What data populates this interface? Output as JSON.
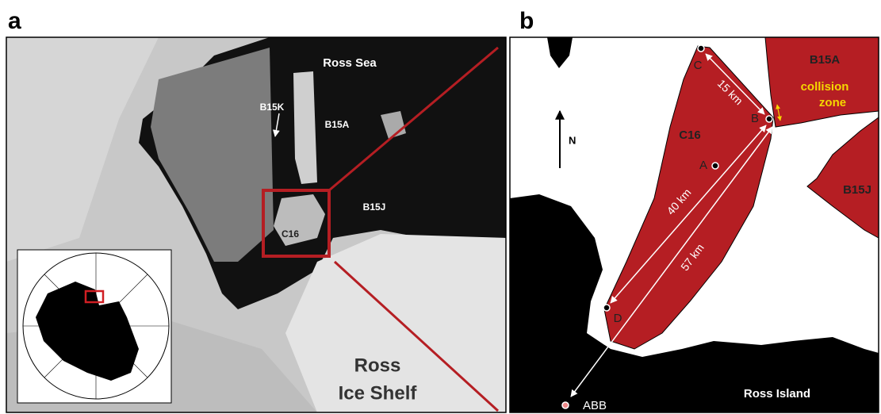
{
  "panel_a": {
    "label": "a",
    "sea_label": "Ross Sea",
    "iceberg_labels": [
      "B15K",
      "B15A",
      "B15J",
      "C16"
    ],
    "shelf_label": [
      "Ross",
      "Ice Shelf"
    ]
  },
  "panel_b": {
    "label": "b",
    "iceberg_labels": [
      "B15A",
      "C16",
      "B15J"
    ],
    "collision_label": [
      "collision",
      "zone"
    ],
    "north": "N",
    "points": [
      "A",
      "B",
      "C",
      "D"
    ],
    "station": "ABB",
    "distances": [
      "15 km",
      "40 km",
      "57 km"
    ],
    "island": "Ross Island"
  }
}
